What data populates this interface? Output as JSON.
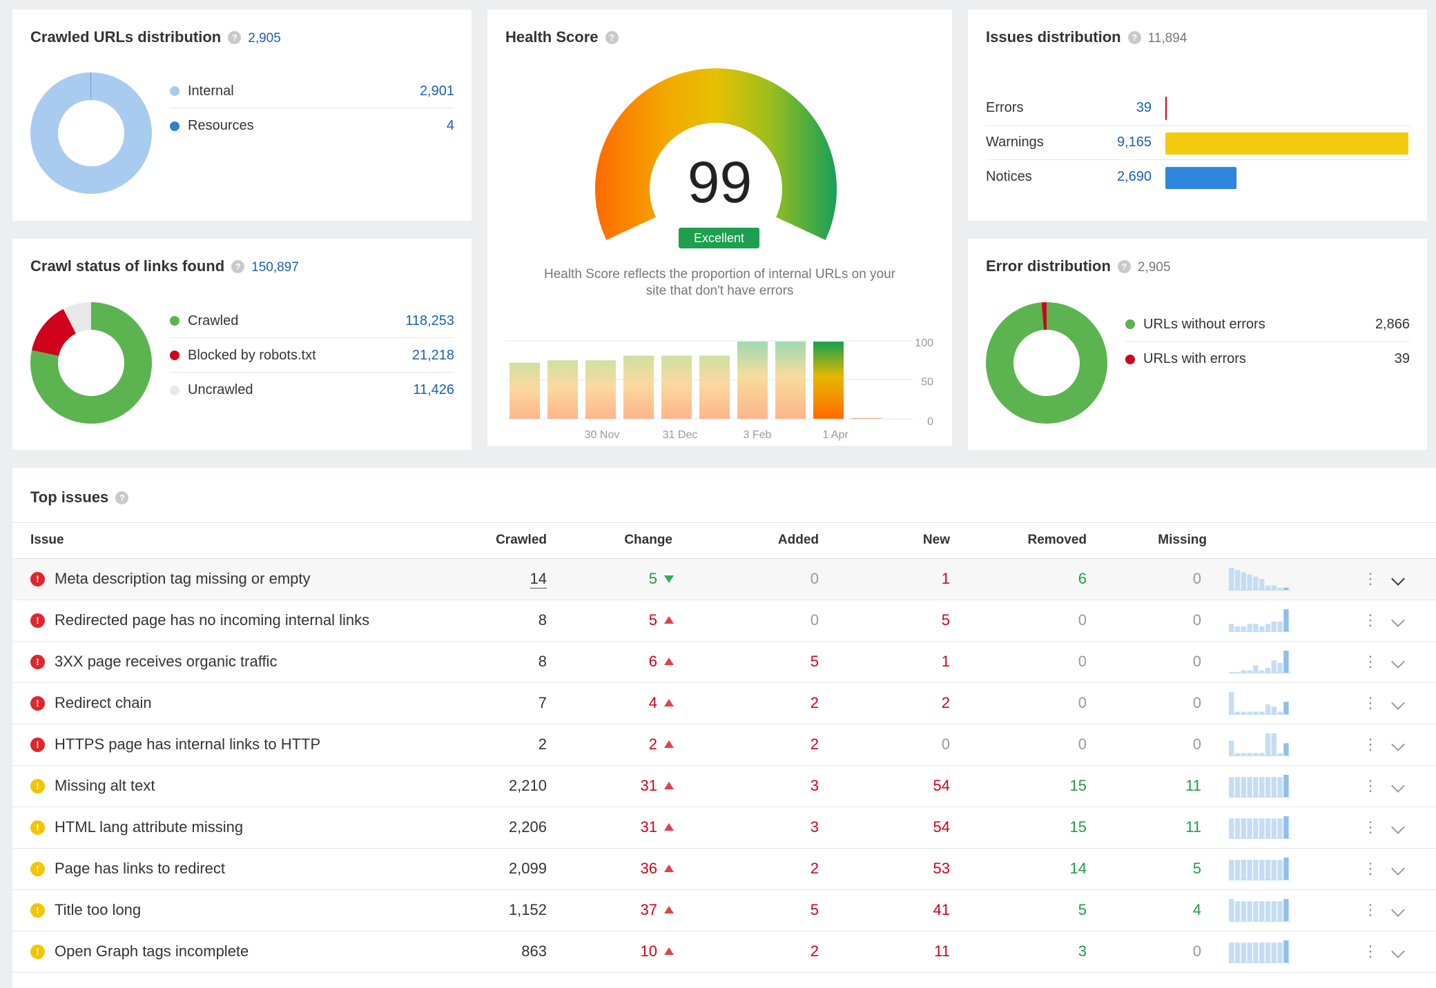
{
  "crawled_urls": {
    "title": "Crawled URLs distribution",
    "total": "2,905",
    "items": [
      {
        "label": "Internal",
        "value": "2,901",
        "color": "#a9cbef"
      },
      {
        "label": "Resources",
        "value": "4",
        "color": "#2f7fd6"
      }
    ],
    "fractions": [
      0.9986,
      0.0014
    ]
  },
  "crawl_status": {
    "title": "Crawl status of links found",
    "total": "150,897",
    "items": [
      {
        "label": "Crawled",
        "value": "118,253",
        "color": "#5bb450"
      },
      {
        "label": "Blocked by robots.txt",
        "value": "21,218",
        "color": "#d0021b"
      },
      {
        "label": "Uncrawled",
        "value": "11,426",
        "color": "#e8e8e8"
      }
    ],
    "fractions": [
      0.7837,
      0.1406,
      0.0757
    ]
  },
  "health": {
    "title": "Health Score",
    "score": "99",
    "badge": "Excellent",
    "desc_line1": "Health Score reflects the proportion of internal URLs on your",
    "desc_line2": "site that don't have errors",
    "chart_x_labels": [
      "30 Nov",
      "31 Dec",
      "3 Feb",
      "1 Apr"
    ],
    "chart_y_labels": [
      "100",
      "50",
      "0"
    ],
    "history": [
      72,
      75,
      75,
      81,
      81,
      81,
      99,
      99,
      99,
      1
    ]
  },
  "issues_dist": {
    "title": "Issues distribution",
    "total": "11,894",
    "rows": [
      {
        "label": "Errors",
        "value": "39",
        "count": 39,
        "color": "#d0021b"
      },
      {
        "label": "Warnings",
        "value": "9,165",
        "count": 9165,
        "color": "#f6c911"
      },
      {
        "label": "Notices",
        "value": "2,690",
        "count": 2690,
        "color": "#2f86dc"
      }
    ]
  },
  "error_dist": {
    "title": "Error distribution",
    "total": "2,905",
    "items": [
      {
        "label": "URLs without errors",
        "value": "2,866",
        "color": "#5bb450"
      },
      {
        "label": "URLs with errors",
        "value": "39",
        "color": "#d0021b"
      }
    ],
    "fractions": [
      0.9866,
      0.0134
    ]
  },
  "top_issues": {
    "title": "Top issues",
    "columns": [
      "Issue",
      "Crawled",
      "Change",
      "Added",
      "New",
      "Removed",
      "Missing"
    ],
    "rows": [
      {
        "sev": "error",
        "issue": "Meta description tag missing or empty",
        "crawled": "14",
        "change": "5",
        "dir": "down",
        "added": "0",
        "new": "1",
        "removed": "6",
        "missing": "0",
        "spark": [
          10,
          9,
          8,
          7,
          6,
          5,
          2,
          2,
          1,
          1
        ]
      },
      {
        "sev": "error",
        "issue": "Redirected page has no incoming internal links",
        "crawled": "8",
        "change": "5",
        "dir": "up",
        "added": "0",
        "new": "5",
        "removed": "0",
        "missing": "0",
        "spark": [
          3,
          2,
          2,
          3,
          3,
          2,
          3,
          4,
          4,
          9
        ]
      },
      {
        "sev": "error",
        "issue": "3XX page receives organic traffic",
        "crawled": "8",
        "change": "6",
        "dir": "up",
        "added": "5",
        "new": "1",
        "removed": "0",
        "missing": "0",
        "spark": [
          0,
          0,
          1,
          1,
          3,
          1,
          2,
          5,
          4,
          9
        ]
      },
      {
        "sev": "error",
        "issue": "Redirect chain",
        "crawled": "7",
        "change": "4",
        "dir": "up",
        "added": "2",
        "new": "2",
        "removed": "0",
        "missing": "0",
        "spark": [
          9,
          1,
          1,
          1,
          1,
          1,
          4,
          3,
          1,
          5
        ]
      },
      {
        "sev": "error",
        "issue": "HTTPS page has internal links to HTTP",
        "crawled": "2",
        "change": "2",
        "dir": "up",
        "added": "2",
        "new": "0",
        "removed": "0",
        "missing": "0",
        "spark": [
          6,
          1,
          1,
          1,
          1,
          1,
          9,
          9,
          1,
          5
        ]
      },
      {
        "sev": "warning",
        "issue": "Missing alt text",
        "crawled": "2,210",
        "change": "31",
        "dir": "up",
        "added": "3",
        "new": "54",
        "removed": "15",
        "missing": "11",
        "spark": [
          9,
          9,
          9,
          9,
          9,
          9,
          9,
          9,
          9,
          10
        ]
      },
      {
        "sev": "warning",
        "issue": "HTML lang attribute missing",
        "crawled": "2,206",
        "change": "31",
        "dir": "up",
        "added": "3",
        "new": "54",
        "removed": "15",
        "missing": "11",
        "spark": [
          9,
          9,
          9,
          9,
          9,
          9,
          9,
          9,
          9,
          10
        ]
      },
      {
        "sev": "warning",
        "issue": "Page has links to redirect",
        "crawled": "2,099",
        "change": "36",
        "dir": "up",
        "added": "2",
        "new": "53",
        "removed": "14",
        "missing": "5",
        "spark": [
          9,
          9,
          9,
          9,
          9,
          9,
          9,
          9,
          9,
          10
        ]
      },
      {
        "sev": "warning",
        "issue": "Title too long",
        "crawled": "1,152",
        "change": "37",
        "dir": "up",
        "added": "5",
        "new": "41",
        "removed": "5",
        "missing": "4",
        "spark": [
          10,
          9,
          9,
          9,
          9,
          9,
          9,
          9,
          9,
          10
        ]
      },
      {
        "sev": "warning",
        "issue": "Open Graph tags incomplete",
        "crawled": "863",
        "change": "10",
        "dir": "up",
        "added": "2",
        "new": "11",
        "removed": "3",
        "missing": "0",
        "spark": [
          9,
          9,
          9,
          9,
          9,
          9,
          9,
          9,
          9,
          10
        ]
      }
    ]
  }
}
